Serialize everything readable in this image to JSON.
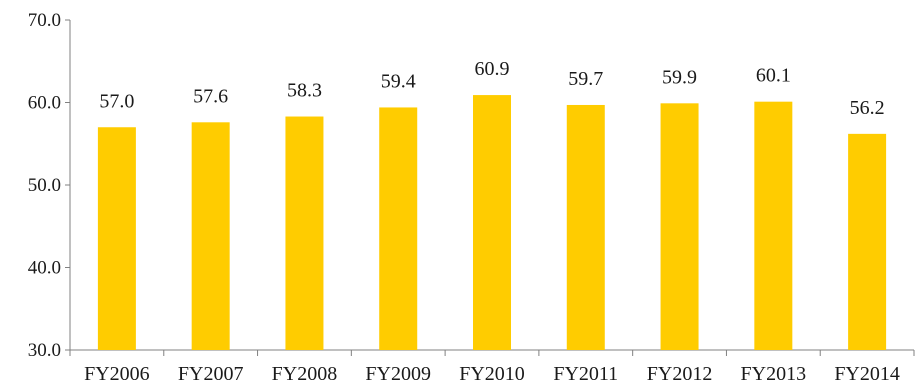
{
  "chart_data": {
    "type": "bar",
    "title": "",
    "xlabel": "",
    "ylabel": "",
    "categories": [
      "FY2006",
      "FY2007",
      "FY2008",
      "FY2009",
      "FY2010",
      "FY2011",
      "FY2012",
      "FY2013",
      "FY2014"
    ],
    "values": [
      57.0,
      57.6,
      58.3,
      59.4,
      60.9,
      59.7,
      59.9,
      60.1,
      56.2
    ],
    "value_labels": [
      "57.0",
      "57.6",
      "58.3",
      "59.4",
      "60.9",
      "59.7",
      "59.9",
      "60.1",
      "56.2"
    ],
    "ylim": [
      30,
      70
    ],
    "yticks": [
      30,
      40,
      50,
      60,
      70
    ],
    "ytick_labels": [
      "30.0",
      "40.0",
      "50.0",
      "60.0",
      "70.0"
    ],
    "grid": false,
    "legend": "none",
    "colors": {
      "bar": "#ffcc00",
      "axis": "#808080",
      "text": "#1a1a1a"
    }
  }
}
